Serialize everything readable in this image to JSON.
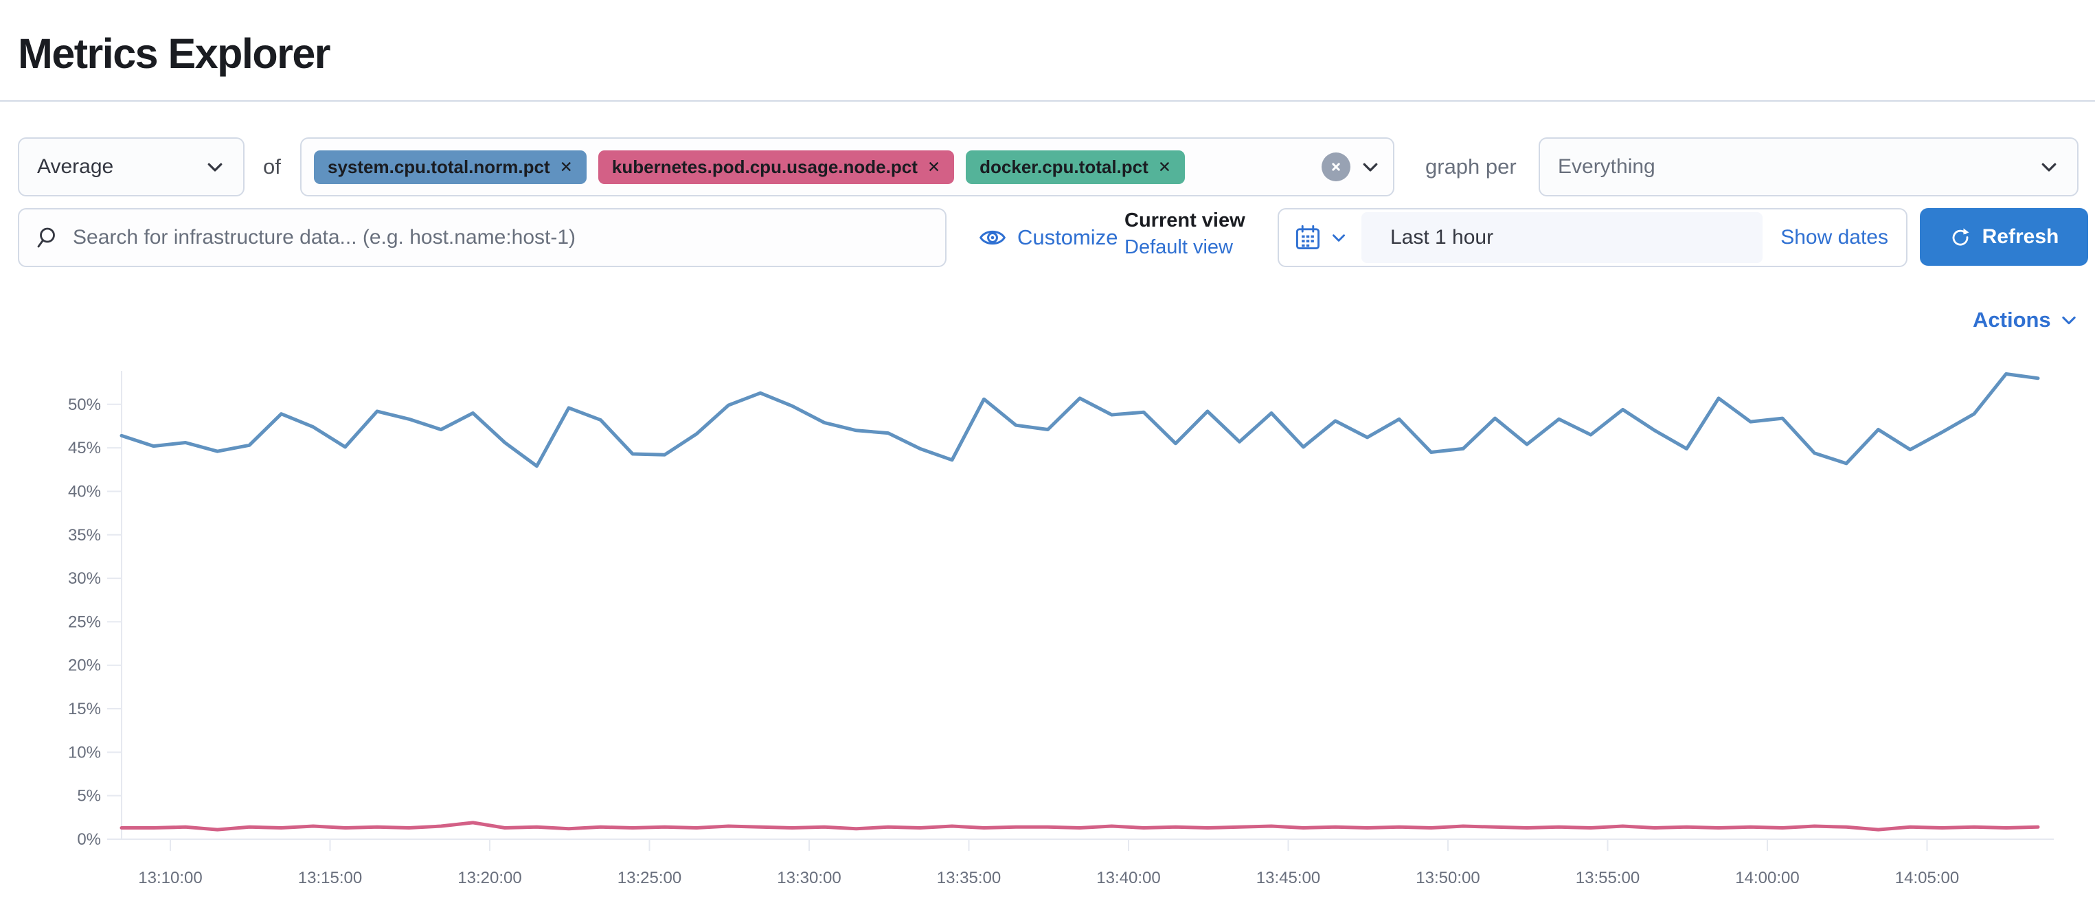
{
  "page": {
    "title": "Metrics Explorer"
  },
  "toolbar": {
    "aggregation": {
      "value": "Average"
    },
    "of_label": "of",
    "metrics": [
      {
        "label": "system.cpu.total.norm.pct",
        "color": "#6092C0",
        "remove_icon": "x"
      },
      {
        "label": "kubernetes.pod.cpu.usage.node.pct",
        "color": "#D36086",
        "remove_icon": "x"
      },
      {
        "label": "docker.cpu.total.pct",
        "color": "#54B399",
        "remove_icon": "x"
      }
    ],
    "graph_per_label": "graph per",
    "group_by": {
      "value": "Everything"
    }
  },
  "search": {
    "placeholder": "Search for infrastructure data... (e.g. host.name:host-1)"
  },
  "view_controls": {
    "customize_label": "Customize",
    "current_view_label": "Current view",
    "default_view_label": "Default view"
  },
  "time_picker": {
    "value": "Last 1 hour",
    "show_dates_label": "Show dates",
    "refresh_label": "Refresh"
  },
  "actions_label": "Actions",
  "icons": {
    "search": "magnifier-icon",
    "customize": "eye-icon",
    "time": "calendar-icon",
    "refresh": "refresh-arrow-icon",
    "clear": "circled-x-icon",
    "dropdowns": "chevron-down-icon"
  },
  "colors": {
    "accent_blue": "#2f70d2",
    "button_blue": "#2e7dd1",
    "series_blue": "#6092C0",
    "series_pink": "#D36086",
    "series_green": "#54B399",
    "border": "#d3dae6",
    "muted_text": "#69707d"
  },
  "chart_data": {
    "type": "line",
    "title": "",
    "xlabel": "",
    "ylabel": "",
    "unit": "percent",
    "legend": "none",
    "grid": "axis-ticks-only",
    "ylim": [
      0,
      53.5
    ],
    "y_tick_labels": [
      "0%",
      "5%",
      "10%",
      "15%",
      "20%",
      "25%",
      "30%",
      "35%",
      "40%",
      "45%",
      "50%"
    ],
    "x_tick_labels": [
      "13:10:00",
      "13:15:00",
      "13:20:00",
      "13:25:00",
      "13:30:00",
      "13:35:00",
      "13:40:00",
      "13:45:00",
      "13:50:00",
      "13:55:00",
      "14:00:00",
      "14:05:00"
    ],
    "x_start": "13:08",
    "x_interval_minutes": 1,
    "series": [
      {
        "name": "system.cpu.total.norm.pct (avg)",
        "color": "#6092C0",
        "values": [
          46.4,
          45.2,
          45.6,
          44.6,
          45.3,
          48.9,
          47.4,
          45.1,
          49.2,
          48.3,
          47.1,
          49.0,
          45.6,
          42.9,
          49.6,
          48.2,
          44.3,
          44.2,
          46.6,
          49.9,
          51.3,
          49.8,
          47.9,
          47.0,
          46.7,
          44.9,
          43.6,
          50.6,
          47.6,
          47.1,
          50.7,
          48.8,
          49.1,
          45.5,
          49.2,
          45.7,
          49.0,
          45.1,
          48.1,
          46.2,
          48.3,
          44.5,
          44.9,
          48.4,
          45.4,
          48.3,
          46.5,
          49.4,
          47.0,
          44.9,
          50.7,
          48.0,
          48.4,
          44.4,
          43.2,
          47.1,
          44.8,
          46.8,
          48.9,
          53.5,
          53.0
        ]
      },
      {
        "name": "kubernetes.pod.cpu.usage.node.pct (avg)",
        "color": "#D36086",
        "values": [
          1.3,
          1.3,
          1.4,
          1.1,
          1.4,
          1.3,
          1.5,
          1.3,
          1.4,
          1.3,
          1.5,
          1.9,
          1.3,
          1.4,
          1.2,
          1.4,
          1.3,
          1.4,
          1.3,
          1.5,
          1.4,
          1.3,
          1.4,
          1.2,
          1.4,
          1.3,
          1.5,
          1.3,
          1.4,
          1.4,
          1.3,
          1.5,
          1.3,
          1.4,
          1.3,
          1.4,
          1.5,
          1.3,
          1.4,
          1.3,
          1.4,
          1.3,
          1.5,
          1.4,
          1.3,
          1.4,
          1.3,
          1.5,
          1.3,
          1.4,
          1.3,
          1.4,
          1.3,
          1.5,
          1.4,
          1.1,
          1.4,
          1.3,
          1.4,
          1.3,
          1.4
        ]
      }
    ]
  }
}
